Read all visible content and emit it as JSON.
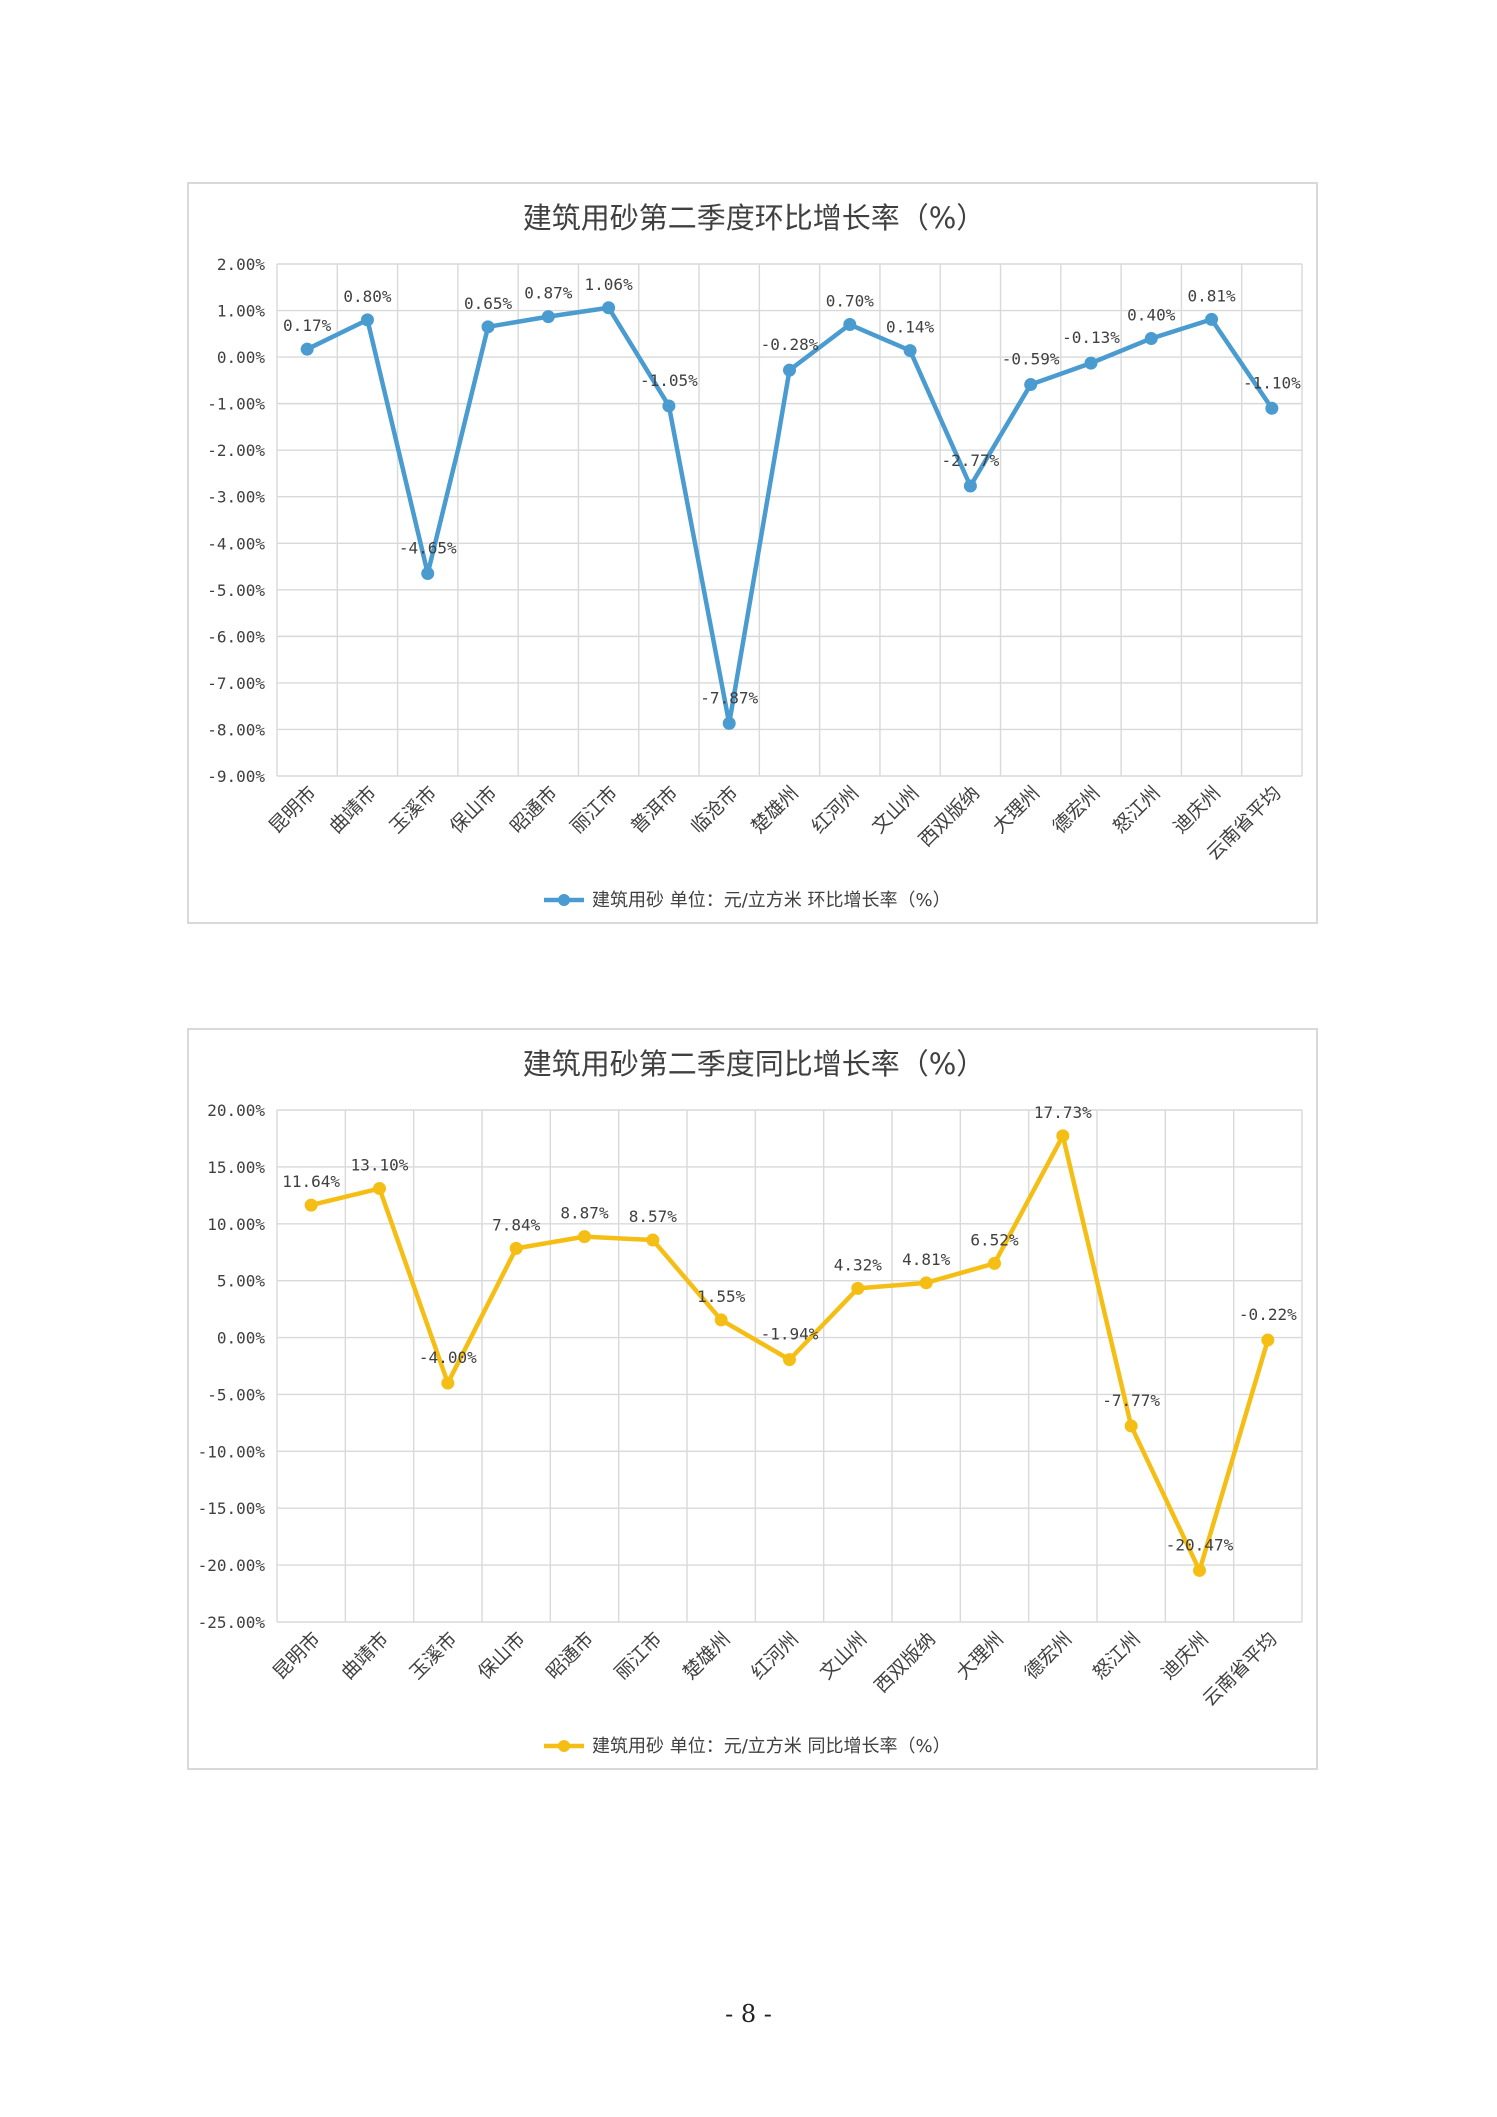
{
  "page": {
    "number_text": "- 8 -"
  },
  "chart_data": [
    {
      "type": "line",
      "title": "建筑用砂第二季度环比增长率（%）",
      "categories": [
        "昆明市",
        "曲靖市",
        "玉溪市",
        "保山市",
        "昭通市",
        "丽江市",
        "普洱市",
        "临沧市",
        "楚雄州",
        "红河州",
        "文山州",
        "西双版纳",
        "大理州",
        "德宏州",
        "怒江州",
        "迪庆州",
        "云南省平均"
      ],
      "series": [
        {
          "name": "建筑用砂 单位：元/立方米 环比增长率（%）",
          "values": [
            0.17,
            0.8,
            -4.65,
            0.65,
            0.87,
            1.06,
            -1.05,
            -7.87,
            -0.28,
            0.7,
            0.14,
            -2.77,
            -0.59,
            -0.13,
            0.4,
            0.81,
            -1.1
          ],
          "labels": [
            "0.17%",
            "0.80%",
            "-4.65%",
            "0.65%",
            "0.87%",
            "1.06%",
            "-1.05%",
            "-7.87%",
            "-0.28%",
            "0.70%",
            "0.14%",
            "-2.77%",
            "-0.59%",
            "-0.13%",
            "0.40%",
            "0.81%",
            "-1.10%"
          ],
          "color": "#4a9bd0"
        }
      ],
      "ylim": [
        -9,
        2
      ],
      "y_ticks": [
        2,
        1,
        0,
        -1,
        -2,
        -3,
        -4,
        -5,
        -6,
        -7,
        -8,
        -9
      ],
      "y_tick_labels": [
        "2.00%",
        "1.00%",
        "0.00%",
        "-1.00%",
        "-2.00%",
        "-3.00%",
        "-4.00%",
        "-5.00%",
        "-6.00%",
        "-7.00%",
        "-8.00%",
        "-9.00%"
      ],
      "grid": true,
      "legend_position": "bottom"
    },
    {
      "type": "line",
      "title": "建筑用砂第二季度同比增长率（%）",
      "categories": [
        "昆明市",
        "曲靖市",
        "玉溪市",
        "保山市",
        "昭通市",
        "丽江市",
        "楚雄州",
        "红河州",
        "文山州",
        "西双版纳",
        "大理州",
        "德宏州",
        "怒江州",
        "迪庆州",
        "云南省平均"
      ],
      "series": [
        {
          "name": "建筑用砂 单位：元/立方米 同比增长率（%）",
          "values": [
            11.64,
            13.1,
            -4.0,
            7.84,
            8.87,
            8.57,
            1.55,
            -1.94,
            4.32,
            4.81,
            6.52,
            17.73,
            -7.77,
            -20.47,
            -0.22
          ],
          "labels": [
            "11.64%",
            "13.10%",
            "-4.00%",
            "7.84%",
            "8.87%",
            "8.57%",
            "1.55%",
            "-1.94%",
            "4.32%",
            "4.81%",
            "6.52%",
            "17.73%",
            "-7.77%",
            "-20.47%",
            "-0.22%"
          ],
          "color": "#f5be14"
        }
      ],
      "ylim": [
        -25,
        20
      ],
      "y_ticks": [
        20,
        15,
        10,
        5,
        0,
        -5,
        -10,
        -15,
        -20,
        -25
      ],
      "y_tick_labels": [
        "20.00%",
        "15.00%",
        "10.00%",
        "5.00%",
        "0.00%",
        "-5.00%",
        "-10.00%",
        "-15.00%",
        "-20.00%",
        "-25.00%"
      ],
      "grid": true,
      "legend_position": "bottom"
    }
  ]
}
